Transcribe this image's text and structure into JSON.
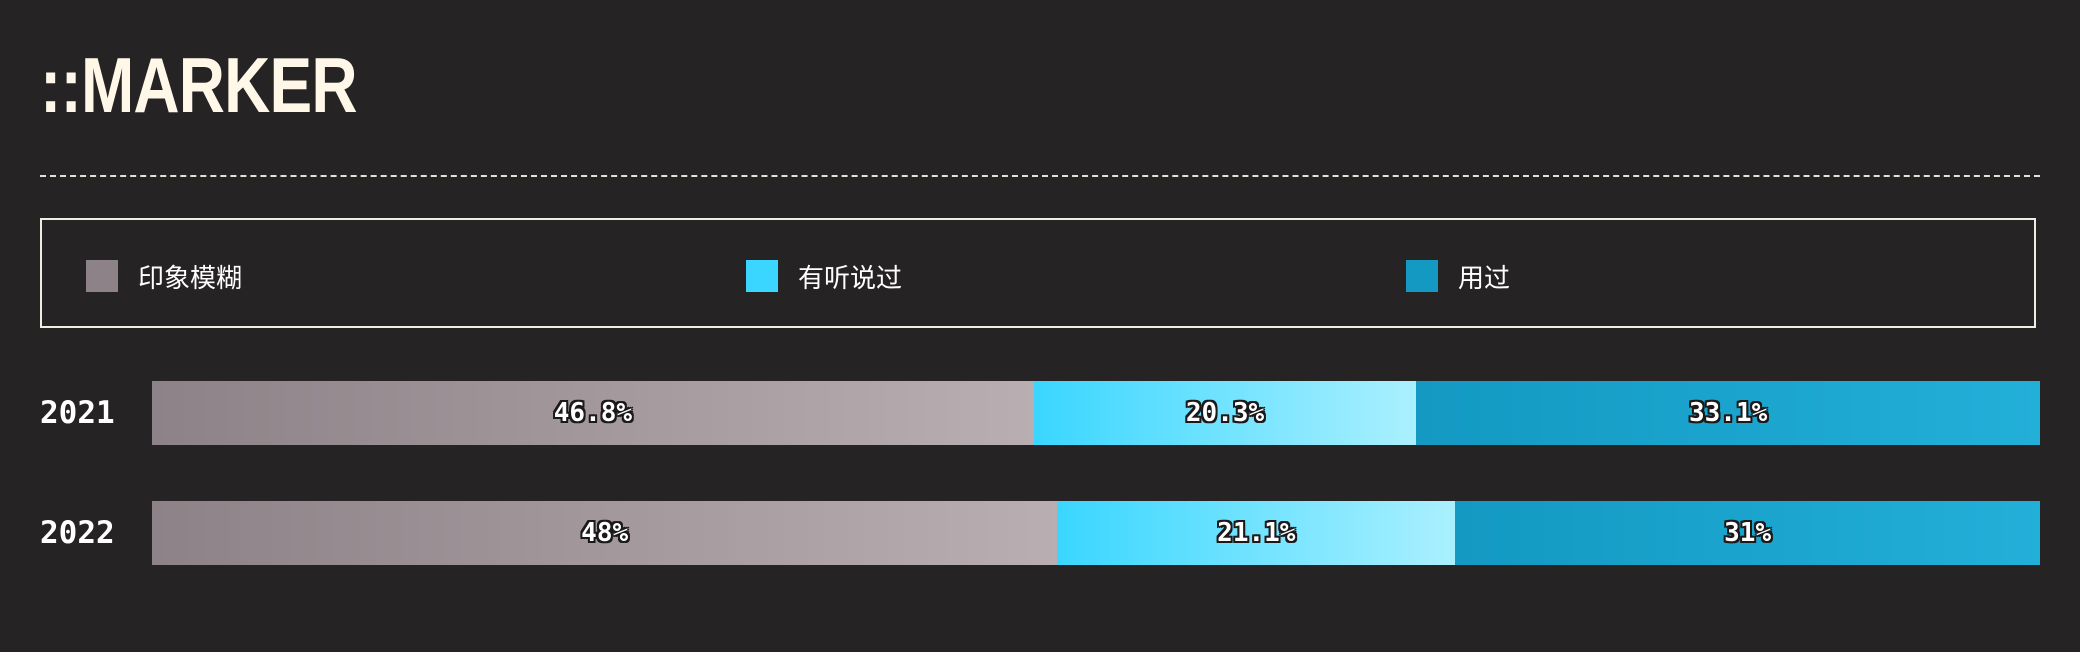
{
  "title": "::MARKER",
  "colors": {
    "background": "#262325",
    "series": [
      "#8c8287",
      "#3ad6ff",
      "#1399c2"
    ],
    "gradient_end": [
      "#b9aeb1",
      "#aaf0ff",
      "#22afd8"
    ]
  },
  "chart_data": {
    "type": "bar",
    "orientation": "horizontal",
    "stacked": true,
    "normalized": true,
    "title": "::MARKER",
    "xlabel": "",
    "ylabel": "",
    "legend_placement": "top",
    "grid": false,
    "categories": [
      "2021",
      "2022"
    ],
    "series": [
      {
        "name": "印象模糊",
        "values": [
          46.8,
          48
        ],
        "labels": [
          "46.8%",
          "48%"
        ]
      },
      {
        "name": "有听说过",
        "values": [
          20.3,
          21.1
        ],
        "labels": [
          "20.3%",
          "21.1%"
        ]
      },
      {
        "name": "用过",
        "values": [
          33.1,
          31
        ],
        "labels": [
          "33.1%",
          "31%"
        ]
      }
    ]
  }
}
